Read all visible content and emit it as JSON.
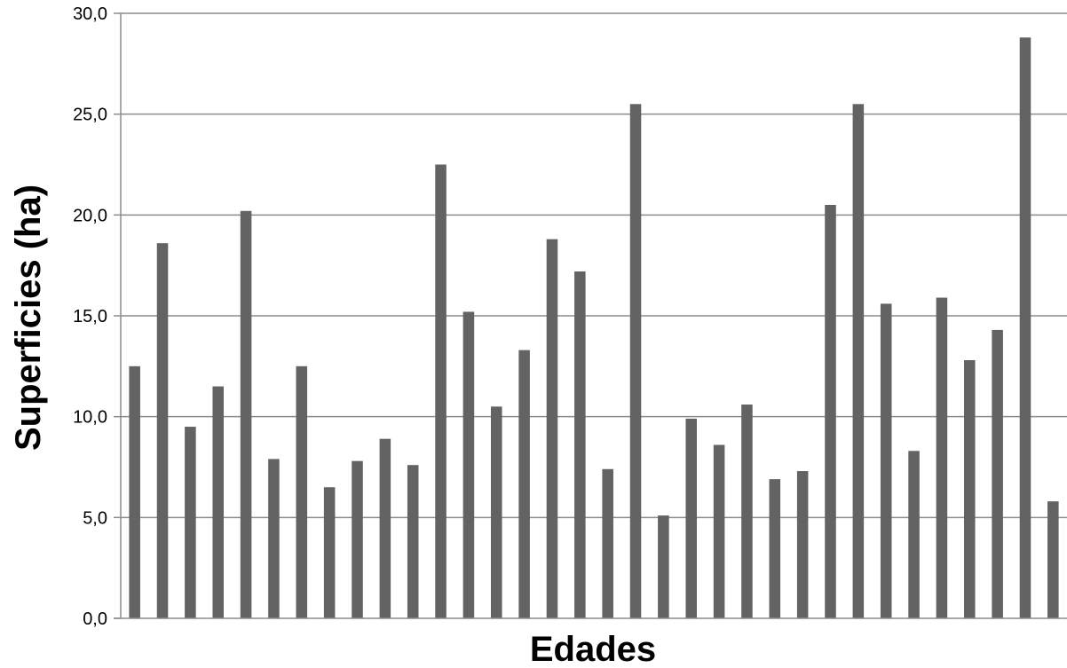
{
  "chart_data": {
    "type": "bar",
    "title": "",
    "xlabel": "Edades",
    "ylabel": "Superficies (ha)",
    "ylim": [
      0,
      30
    ],
    "yticks": [
      "0,0",
      "5,0",
      "10,0",
      "15,0",
      "20,0",
      "25,0",
      "30,0"
    ],
    "grid": true,
    "legend": "none",
    "colors": {
      "bar": "#636363",
      "grid": "#8c8c8c",
      "axis": "#8c8c8c"
    },
    "values": [
      12.5,
      18.6,
      9.5,
      11.5,
      20.2,
      7.9,
      12.5,
      6.5,
      7.8,
      8.9,
      7.6,
      22.5,
      15.2,
      10.5,
      13.3,
      18.8,
      17.2,
      7.4,
      25.5,
      5.1,
      9.9,
      8.6,
      10.6,
      6.9,
      7.3,
      20.5,
      25.5,
      15.6,
      8.3,
      15.9,
      12.8,
      14.3,
      28.8,
      5.8
    ]
  }
}
